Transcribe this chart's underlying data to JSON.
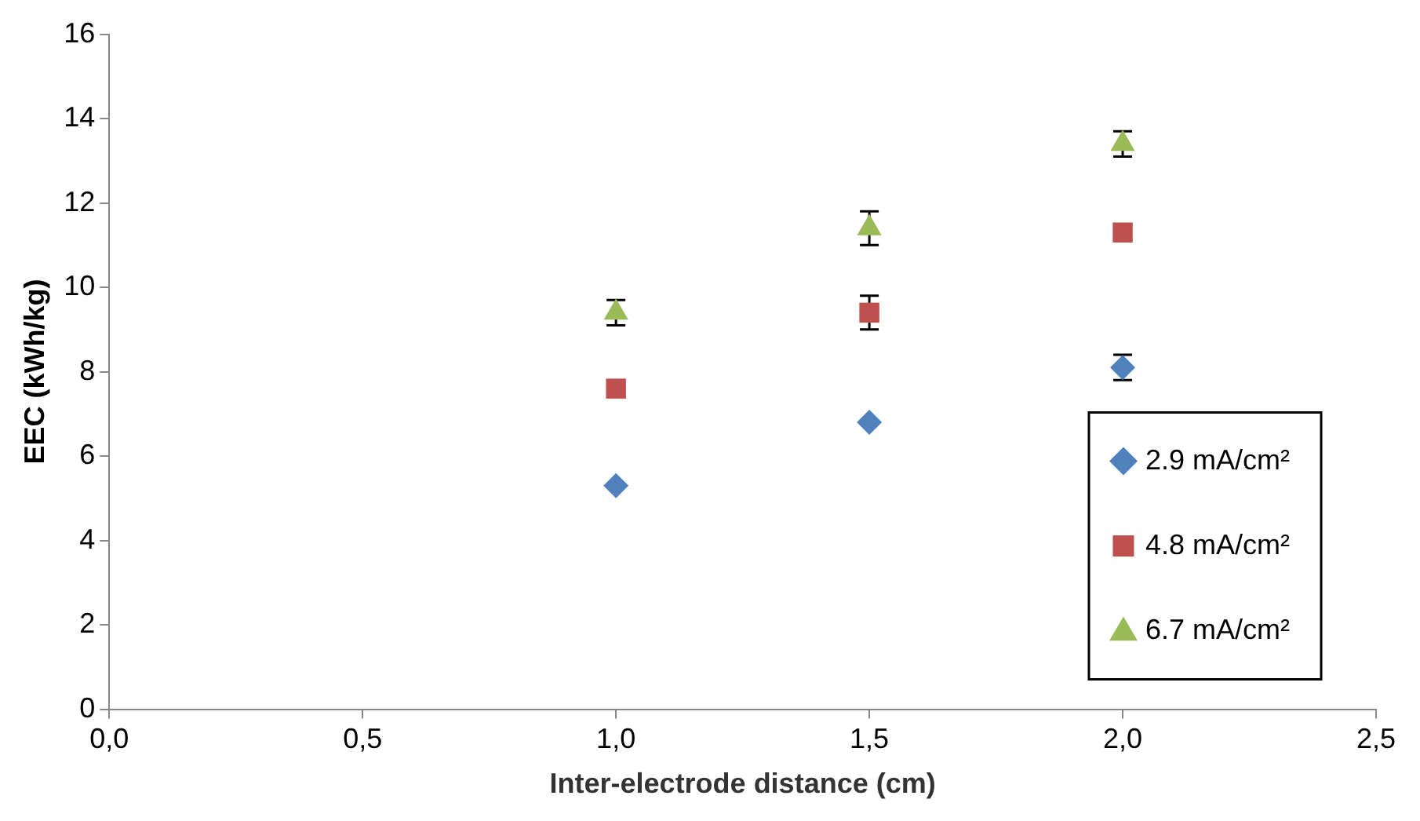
{
  "chart_data": {
    "type": "scatter",
    "xlabel": "Inter-electrode distance (cm)",
    "ylabel": "EEC (kWh/kg)",
    "xlim": [
      0,
      2.5
    ],
    "xticks": [
      {
        "value": 0,
        "label": "0,0"
      },
      {
        "value": 0.5,
        "label": "0,5"
      },
      {
        "value": 1,
        "label": "1,0"
      },
      {
        "value": 1.5,
        "label": "1,5"
      },
      {
        "value": 2,
        "label": "2,0"
      },
      {
        "value": 2.5,
        "label": "2,5"
      }
    ],
    "ylim": [
      0,
      16
    ],
    "yticks": [
      0,
      2,
      4,
      6,
      8,
      10,
      12,
      14,
      16
    ],
    "grid": false,
    "legend": "bottom right",
    "series": [
      {
        "name": "2.9 mA/cm²",
        "color": "#4f81bd",
        "marker": "diamond",
        "x": [
          1,
          1.5,
          2
        ],
        "values": [
          5.3,
          6.8,
          8.1
        ],
        "errors": [
          null,
          null,
          0.3
        ]
      },
      {
        "name": "4.8 mA/cm²",
        "color": "#c0504d",
        "marker": "square",
        "x": [
          1,
          1.5,
          2
        ],
        "values": [
          7.6,
          9.4,
          11.3
        ],
        "errors": [
          null,
          0.4,
          null
        ]
      },
      {
        "name": "6.7 mA/cm²",
        "color": "#9bbb59",
        "marker": "triangle",
        "x": [
          1,
          1.5,
          2
        ],
        "values": [
          9.4,
          11.4,
          13.4
        ],
        "errors": [
          0.3,
          0.4,
          0.3
        ]
      }
    ]
  }
}
